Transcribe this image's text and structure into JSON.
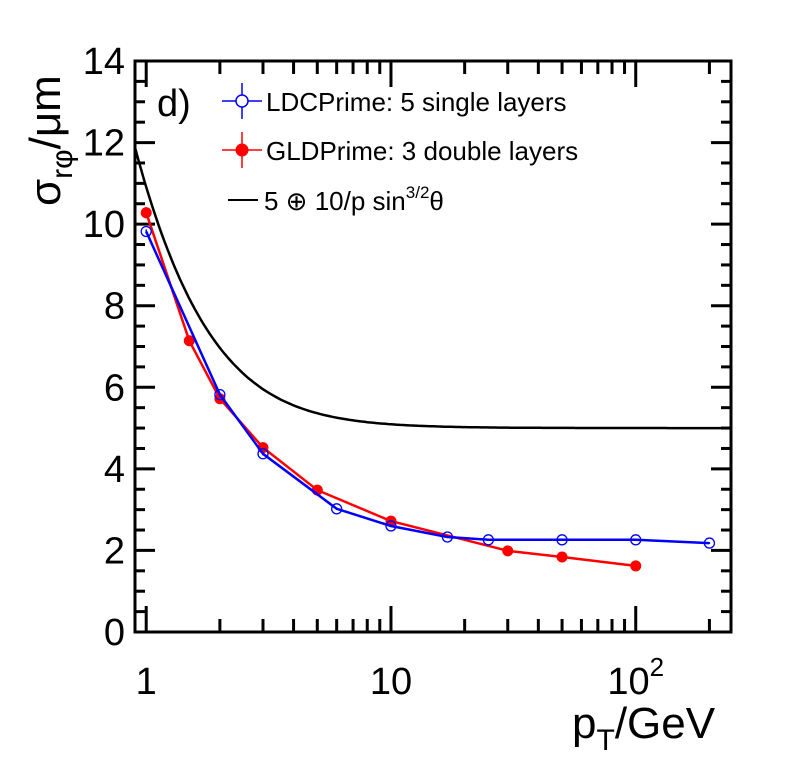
{
  "chart_data": {
    "type": "line",
    "panel_label": "d)",
    "xlabel": {
      "main": "p",
      "sub": "T",
      "rest": "/GeV"
    },
    "ylabel": {
      "main": "σ",
      "sub": "rφ",
      "rest": "/μm"
    },
    "xscale": "log",
    "xlim": [
      0.9,
      245
    ],
    "ylim": [
      0,
      14
    ],
    "x_ticks": [
      {
        "value": 1,
        "label": "1"
      },
      {
        "value": 10,
        "label": "10"
      },
      {
        "value": 100,
        "label": "10",
        "sup": "2"
      }
    ],
    "y_ticks": [
      0,
      2,
      4,
      6,
      8,
      10,
      12,
      14
    ],
    "y_tick_labels": [
      "0",
      "2",
      "4",
      "6",
      "8",
      "10",
      "12",
      "14"
    ],
    "grid": false,
    "legend_placement": "top-left",
    "series": [
      {
        "name": "LDCPrime: 5 single layers",
        "color": "#0000ff",
        "marker": "open-circle",
        "x": [
          1,
          2,
          3,
          6,
          10,
          17,
          25,
          50,
          100,
          200
        ],
        "y": [
          9.82,
          5.82,
          4.37,
          3.02,
          2.6,
          2.33,
          2.26,
          2.26,
          2.26,
          2.18
        ],
        "yerr": [
          0.05,
          0.05,
          0.04,
          0.03,
          0.03,
          0.02,
          0.02,
          0.02,
          0.02,
          0.02
        ]
      },
      {
        "name": "GLDPrime: 3 double layers",
        "color": "#ff0000",
        "marker": "filled-circle",
        "x": [
          1,
          1.5,
          2,
          3,
          5,
          10,
          30,
          50,
          100
        ],
        "y": [
          10.28,
          7.14,
          5.72,
          4.52,
          3.48,
          2.72,
          1.99,
          1.84,
          1.62
        ],
        "yerr": [
          0.14,
          0.08,
          0.06,
          0.05,
          0.04,
          0.03,
          0.02,
          0.02,
          0.02
        ]
      },
      {
        "name_parts": {
          "a": "5 ⊕ 10/p sin",
          "sup": "3/2",
          "b": "θ"
        },
        "name": "5 ⊕ 10/p sin^3/2 θ",
        "color": "#000000",
        "marker": "none",
        "function": "sqrt(25 + (9.7/p)^2)",
        "x_range": [
          0.9,
          245
        ]
      }
    ]
  }
}
